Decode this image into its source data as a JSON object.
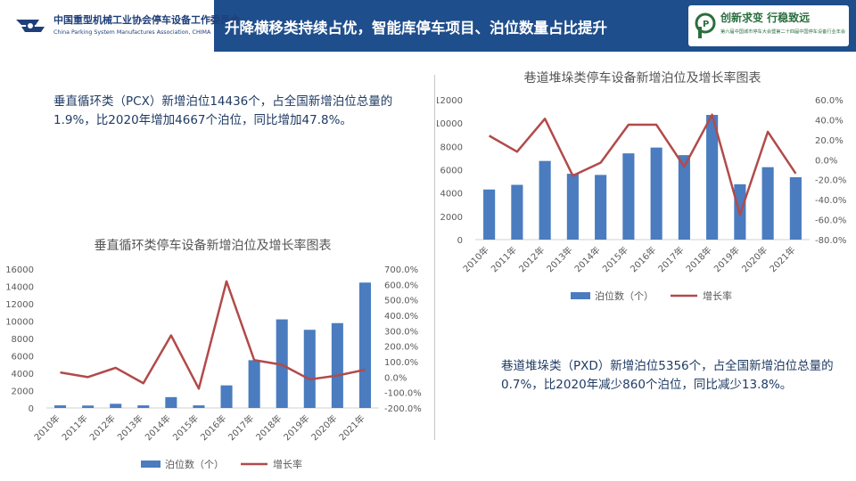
{
  "header": {
    "org_cn": "中国重型机械工业协会停车设备工作委员会",
    "org_en": "China Parking System Manufactures Association, CHIMA",
    "title": "升降横移类持续占优，智能库停车项目、泊位数量占比提升",
    "slogan": "创新求变  行稳致远",
    "slogan_sub": "第六届中国城市停车大会暨第二十四届中国停车设备行业年会"
  },
  "notes": {
    "left": "垂直循环类（PCX）新增泊位14436个，占全国新增泊位总量的1.9%，比2020年增加4667个泊位，同比增加47.8%。",
    "right": "巷道堆垛类（PXD）新增泊位5356个，占全国新增泊位总量的0.7%，比2020年减少860个泊位，同比减少13.8%。"
  },
  "colors": {
    "header_bg": "#1f4e8c",
    "bar": "#4a7cbf",
    "line": "#b24a4a",
    "note_text": "#1f3b63"
  },
  "chart_data": [
    {
      "id": "pcx",
      "type": "bar+line",
      "title": "垂直循环类停车设备新增泊位及增长率图表",
      "categories": [
        "2010年",
        "2011年",
        "2012年",
        "2013年",
        "2014年",
        "2015年",
        "2016年",
        "2017年",
        "2018年",
        "2019年",
        "2020年",
        "2021年"
      ],
      "series": [
        {
          "name": "泊位数（个）",
          "type": "bar",
          "axis": "left",
          "values": [
            300,
            280,
            480,
            300,
            1250,
            300,
            2600,
            5500,
            10200,
            9000,
            9769,
            14436
          ]
        },
        {
          "name": "增长率",
          "type": "line",
          "axis": "right",
          "values": [
            30,
            0,
            60,
            -40,
            270,
            -75,
            620,
            110,
            80,
            -15,
            10,
            47.8
          ]
        }
      ],
      "y_left": {
        "min": 0,
        "max": 16000,
        "step": 2000,
        "ticks": [
          "0",
          "2000",
          "4000",
          "6000",
          "8000",
          "10000",
          "12000",
          "14000",
          "16000"
        ]
      },
      "y_right": {
        "min": -200,
        "max": 700,
        "step": 100,
        "ticks": [
          "-200.0%",
          "-100.0%",
          "0.0%",
          "100.0%",
          "200.0%",
          "300.0%",
          "400.0%",
          "500.0%",
          "600.0%",
          "700.0%"
        ]
      },
      "legend": {
        "position": "bottom",
        "items": [
          "泊位数（个）",
          "增长率"
        ]
      },
      "grid": false
    },
    {
      "id": "pxd",
      "type": "bar+line",
      "title": "巷道堆垛类停车设备新增泊位及增长率图表",
      "categories": [
        "2010年",
        "2011年",
        "2012年",
        "2013年",
        "2014年",
        "2015年",
        "2016年",
        "2017年",
        "2018年",
        "2019年",
        "2020年",
        "2021年"
      ],
      "series": [
        {
          "name": "泊位数（个）",
          "type": "bar",
          "axis": "left",
          "values": [
            4300,
            4700,
            6750,
            5650,
            5550,
            7400,
            7900,
            7250,
            10700,
            4750,
            6216,
            5356
          ]
        },
        {
          "name": "增长率",
          "type": "line",
          "axis": "right",
          "values": [
            24,
            8,
            41,
            -16,
            -3,
            35,
            35,
            -7,
            45,
            -55,
            28,
            -13.8
          ]
        }
      ],
      "y_left": {
        "min": 0,
        "max": 12000,
        "step": 2000,
        "ticks": [
          "0",
          "2000",
          "4000",
          "6000",
          "8000",
          "10000",
          "12000"
        ]
      },
      "y_right": {
        "min": -80,
        "max": 60,
        "step": 20,
        "ticks": [
          "-80.0%",
          "-60.0%",
          "-40.0%",
          "-20.0%",
          "0.0%",
          "20.0%",
          "40.0%",
          "60.0%"
        ]
      },
      "legend": {
        "position": "bottom",
        "items": [
          "泊位数（个）",
          "增长率"
        ]
      },
      "grid": false
    }
  ]
}
